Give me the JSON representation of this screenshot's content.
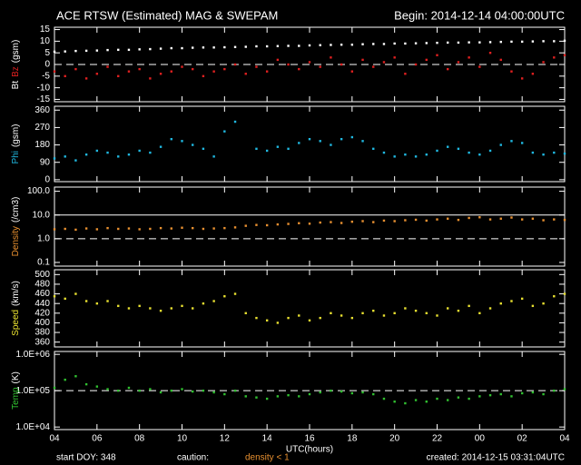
{
  "header": {
    "title": "ACE RTSW (Estimated) MAG & SWEPAM",
    "begin": "Begin: 2014-12-14 04:00:00UTC"
  },
  "footer": {
    "start": "start DOY: 348",
    "caution": "caution:",
    "density_note": "density < 1",
    "created": "created: 2014-12-15 03:31:04UTC"
  },
  "chart_data": [
    {
      "type": "scatter",
      "ylabel_unit": "(gsm)",
      "xlim": [
        4,
        28
      ],
      "ylim": [
        -16,
        16
      ],
      "yticks": [
        15,
        10,
        5,
        0,
        -5,
        -10,
        -15
      ],
      "log": false,
      "reflines": [
        {
          "value": 0,
          "style": "dashed"
        }
      ],
      "x": [
        4,
        4.5,
        5,
        5.5,
        6,
        6.5,
        7,
        7.5,
        8,
        8.5,
        9,
        9.5,
        10,
        10.5,
        11,
        11.5,
        12,
        12.5,
        13,
        13.5,
        14,
        14.5,
        15,
        15.5,
        16,
        16.5,
        17,
        17.5,
        18,
        18.5,
        19,
        19.5,
        20,
        20.5,
        21,
        21.5,
        22,
        22.5,
        23,
        23.5,
        24,
        24.5,
        25,
        25.5,
        26,
        26.5,
        27,
        27.5,
        28
      ],
      "series": [
        {
          "name": "Bt",
          "color": "#ffffff",
          "values": [
            5.5,
            5.6,
            5.8,
            5.9,
            6,
            6.2,
            6.3,
            6.3,
            6.5,
            6.6,
            6.8,
            7,
            7,
            7.2,
            7.3,
            7.3,
            7.4,
            7.5,
            7.6,
            7.8,
            7.8,
            7.9,
            8,
            8,
            8.2,
            8.3,
            8.4,
            8.5,
            8.5,
            8.7,
            8.8,
            8.8,
            9,
            9,
            9.1,
            9.2,
            9.3,
            9.4,
            9.4,
            9.5,
            9.5,
            9.6,
            9.7,
            9.8,
            9.8,
            9.9,
            10,
            10,
            10.2
          ]
        },
        {
          "name": "Bz",
          "color": "#e02020",
          "values": [
            -3,
            -5,
            -2,
            -6,
            -4,
            -1,
            -5,
            -3,
            -2,
            -6,
            -4,
            -3,
            -1,
            -2,
            -5,
            -3,
            -2,
            0,
            -4,
            -1,
            -3,
            2,
            0,
            -2,
            1,
            -1,
            3,
            0,
            -3,
            2,
            -1,
            1,
            3,
            -4,
            0,
            2,
            4,
            -2,
            1,
            3,
            -1,
            5,
            2,
            -3,
            -6,
            -4,
            1,
            3,
            4
          ]
        }
      ]
    },
    {
      "type": "scatter",
      "ylabel_unit": "(gsm)",
      "xlim": [
        4,
        28
      ],
      "ylim": [
        -10,
        380
      ],
      "yticks": [
        360,
        270,
        180,
        90,
        0
      ],
      "log": false,
      "reflines": [],
      "x": [
        4,
        4.5,
        5,
        5.5,
        6,
        6.5,
        7,
        7.5,
        8,
        8.5,
        9,
        9.5,
        10,
        10.5,
        11,
        11.5,
        12,
        12.5,
        13,
        13.5,
        14,
        14.5,
        15,
        15.5,
        16,
        16.5,
        17,
        17.5,
        18,
        18.5,
        19,
        19.5,
        20,
        20.5,
        21,
        21.5,
        22,
        22.5,
        23,
        23.5,
        24,
        24.5,
        25,
        25.5,
        26,
        26.5,
        27,
        27.5,
        28
      ],
      "series": [
        {
          "name": "Phi",
          "color": "#20b8e0",
          "values": [
            110,
            120,
            100,
            130,
            150,
            140,
            120,
            130,
            150,
            140,
            170,
            210,
            200,
            180,
            160,
            120,
            250,
            300,
            null,
            160,
            150,
            170,
            160,
            190,
            210,
            200,
            180,
            210,
            220,
            200,
            160,
            140,
            120,
            130,
            120,
            130,
            150,
            170,
            160,
            140,
            130,
            150,
            180,
            200,
            190,
            140,
            130,
            140,
            135
          ]
        }
      ]
    },
    {
      "type": "scatter",
      "ylabel_unit": "(/cm3)",
      "xlim": [
        4,
        28
      ],
      "ylim": [
        0.07,
        150
      ],
      "yticks": [
        {
          "value": 100,
          "label": "100.0"
        },
        {
          "value": 10,
          "label": "10.0"
        },
        {
          "value": 1,
          "label": "1.0"
        },
        0.1
      ],
      "log": true,
      "reflines": [
        {
          "value": 10,
          "style": "solid"
        },
        {
          "value": 1,
          "style": "dashed"
        }
      ],
      "x": [
        4,
        4.5,
        5,
        5.5,
        6,
        6.5,
        7,
        7.5,
        8,
        8.5,
        9,
        9.5,
        10,
        10.5,
        11,
        11.5,
        12,
        12.5,
        13,
        13.5,
        14,
        14.5,
        15,
        15.5,
        16,
        16.5,
        17,
        17.5,
        18,
        18.5,
        19,
        19.5,
        20,
        20.5,
        21,
        21.5,
        22,
        22.5,
        23,
        23.5,
        24,
        24.5,
        25,
        25.5,
        26,
        26.5,
        27,
        27.5,
        28
      ],
      "series": [
        {
          "name": "Density",
          "color": "#e89030",
          "values": [
            2.5,
            2.6,
            2.4,
            2.7,
            2.5,
            2.8,
            2.6,
            2.7,
            2.5,
            2.6,
            2.8,
            2.7,
            2.9,
            2.8,
            2.6,
            2.7,
            2.8,
            3,
            3.5,
            3.8,
            3.7,
            4,
            4.2,
            4.5,
            4.3,
            4.8,
            5,
            4.6,
            5.2,
            5.5,
            5,
            5.8,
            5.5,
            6,
            6.3,
            5.8,
            6.5,
            7,
            6.2,
            7.5,
            8,
            6.5,
            7,
            7.8,
            6.5,
            7,
            6,
            6.5,
            6.2
          ]
        }
      ]
    },
    {
      "type": "scatter",
      "ylabel_unit": "(km/s)",
      "xlim": [
        4,
        28
      ],
      "ylim": [
        350,
        510
      ],
      "yticks": [
        500,
        480,
        460,
        440,
        420,
        400,
        380,
        360
      ],
      "log": false,
      "reflines": [],
      "x": [
        4,
        4.5,
        5,
        5.5,
        6,
        6.5,
        7,
        7.5,
        8,
        8.5,
        9,
        9.5,
        10,
        10.5,
        11,
        11.5,
        12,
        12.5,
        13,
        13.5,
        14,
        14.5,
        15,
        15.5,
        16,
        16.5,
        17,
        17.5,
        18,
        18.5,
        19,
        19.5,
        20,
        20.5,
        21,
        21.5,
        22,
        22.5,
        23,
        23.5,
        24,
        24.5,
        25,
        25.5,
        26,
        26.5,
        27,
        27.5,
        28
      ],
      "series": [
        {
          "name": "Speed",
          "color": "#e8e030",
          "values": [
            455,
            450,
            460,
            445,
            440,
            445,
            435,
            430,
            435,
            430,
            425,
            430,
            435,
            430,
            440,
            445,
            455,
            460,
            420,
            410,
            405,
            400,
            410,
            415,
            405,
            410,
            420,
            415,
            410,
            420,
            425,
            415,
            420,
            430,
            425,
            420,
            415,
            430,
            425,
            435,
            420,
            430,
            440,
            445,
            450,
            435,
            440,
            455,
            460
          ]
        }
      ]
    },
    {
      "type": "scatter",
      "ylabel_unit": "(K)",
      "xlim": [
        4,
        28
      ],
      "ylim": [
        8500,
        1200000
      ],
      "yticks": [
        {
          "value": 1000000,
          "label": "1.0E+06"
        },
        {
          "value": 100000,
          "label": "1.0E+05"
        },
        {
          "value": 10000,
          "label": "1.0E+04"
        }
      ],
      "log": true,
      "reflines": [
        {
          "value": 100000,
          "style": "dashed"
        }
      ],
      "xlabel": "UTC(hours)",
      "xticks": [
        {
          "value": 4,
          "label": "04"
        },
        {
          "value": 6,
          "label": "06"
        },
        {
          "value": 8,
          "label": "08"
        },
        10,
        12,
        14,
        16,
        18,
        20,
        22,
        {
          "value": 24,
          "label": "00"
        },
        {
          "value": 26,
          "label": "02"
        },
        {
          "value": 28,
          "label": "04"
        }
      ],
      "x": [
        4,
        4.5,
        5,
        5.5,
        6,
        6.5,
        7,
        7.5,
        8,
        8.5,
        9,
        9.5,
        10,
        10.5,
        11,
        11.5,
        12,
        12.5,
        13,
        13.5,
        14,
        14.5,
        15,
        15.5,
        16,
        16.5,
        17,
        17.5,
        18,
        18.5,
        19,
        19.5,
        20,
        20.5,
        21,
        21.5,
        22,
        22.5,
        23,
        23.5,
        24,
        24.5,
        25,
        25.5,
        26,
        26.5,
        27,
        27.5,
        28
      ],
      "series": [
        {
          "name": "Temp",
          "color": "#30c030",
          "values": [
            120000,
            200000,
            250000,
            150000,
            130000,
            110000,
            100000,
            120000,
            100000,
            110000,
            90000,
            100000,
            110000,
            95000,
            100000,
            90000,
            80000,
            100000,
            70000,
            65000,
            60000,
            70000,
            75000,
            70000,
            80000,
            90000,
            100000,
            95000,
            85000,
            90000,
            80000,
            60000,
            50000,
            45000,
            55000,
            50000,
            60000,
            55000,
            65000,
            60000,
            70000,
            75000,
            80000,
            70000,
            85000,
            90000,
            80000,
            100000,
            110000
          ]
        }
      ]
    }
  ]
}
